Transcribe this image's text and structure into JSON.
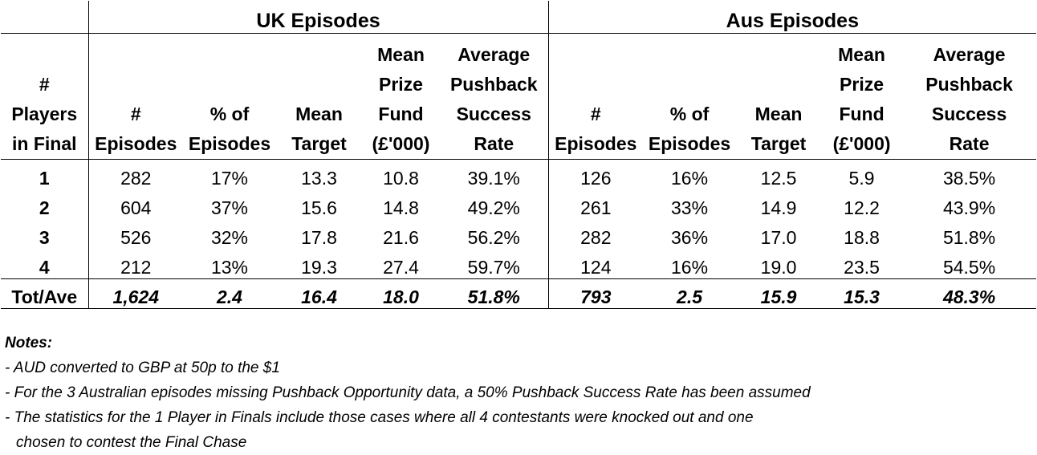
{
  "table": {
    "groups": {
      "uk": "UK Episodes",
      "aus": "Aus Episodes"
    },
    "row_header": [
      "#",
      "Players",
      "in Final"
    ],
    "uk_columns": [
      [
        "#",
        "Episodes"
      ],
      [
        "% of",
        "Episodes"
      ],
      [
        "Mean",
        "Target"
      ],
      [
        "Mean",
        "Prize",
        "Fund",
        "(£'000)"
      ],
      [
        "Average",
        "Pushback",
        "Success",
        "Rate"
      ]
    ],
    "aus_columns": [
      [
        "#",
        "Episodes"
      ],
      [
        "% of",
        "Episodes"
      ],
      [
        "Mean",
        "Target"
      ],
      [
        "Mean",
        "Prize",
        "Fund",
        "(£'000)"
      ],
      [
        "Average",
        "Pushback",
        "Success",
        "Rate"
      ]
    ],
    "rows": [
      {
        "label": "1",
        "uk": [
          "282",
          "17%",
          "13.3",
          "10.8",
          "39.1%"
        ],
        "aus": [
          "126",
          "16%",
          "12.5",
          "5.9",
          "38.5%"
        ]
      },
      {
        "label": "2",
        "uk": [
          "604",
          "37%",
          "15.6",
          "14.8",
          "49.2%"
        ],
        "aus": [
          "261",
          "33%",
          "14.9",
          "12.2",
          "43.9%"
        ]
      },
      {
        "label": "3",
        "uk": [
          "526",
          "32%",
          "17.8",
          "21.6",
          "56.2%"
        ],
        "aus": [
          "282",
          "36%",
          "17.0",
          "18.8",
          "51.8%"
        ]
      },
      {
        "label": "4",
        "uk": [
          "212",
          "13%",
          "19.3",
          "27.4",
          "59.7%"
        ],
        "aus": [
          "124",
          "16%",
          "19.0",
          "23.5",
          "54.5%"
        ]
      }
    ],
    "total": {
      "label": "Tot/Ave",
      "uk": [
        "1,624",
        "2.4",
        "16.4",
        "18.0",
        "51.8%"
      ],
      "aus": [
        "793",
        "2.5",
        "15.9",
        "15.3",
        "48.3%"
      ]
    }
  },
  "notes": {
    "title": "Notes:",
    "lines": [
      "- AUD converted to GBP at 50p to the $1",
      "- For the 3 Australian episodes missing Pushback Opportunity data, a 50% Pushback Success Rate has been assumed",
      "- The statistics for the 1 Player in Finals include those cases where all 4 contestants were knocked out and one",
      "chosen to contest the Final Chase"
    ]
  }
}
